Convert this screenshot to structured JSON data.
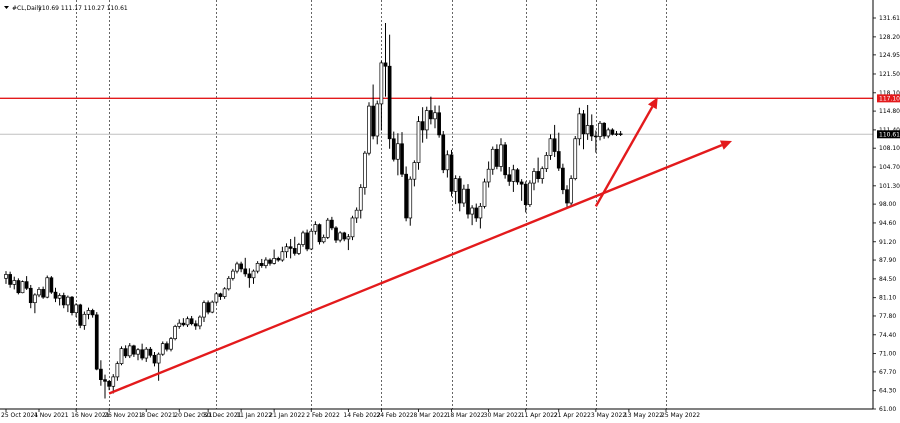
{
  "header": {
    "symbol": "#CL,Daily",
    "ohlc": "110.69 111.17 110.27 110.61"
  },
  "colors": {
    "background": "#ffffff",
    "grid": "#000000",
    "candle": "#000000",
    "bull_body": "#ffffff",
    "bear_body": "#000000",
    "resistance": "#e31a1c",
    "arrow": "#e31a1c",
    "current_price_line": "#c0c0c0",
    "price_tag_text": "#ffffff",
    "current_tag_bg": "#000000"
  },
  "chart_data": {
    "type": "candlestick",
    "title": "#CL,Daily",
    "y_ticks": [
      "131.61",
      "128.20",
      "124.95",
      "121.50",
      "118.10",
      "114.80",
      "111.40",
      "108.10",
      "104.70",
      "101.30",
      "98.00",
      "94.60",
      "91.20",
      "87.90",
      "84.50",
      "81.10",
      "77.80",
      "74.40",
      "71.00",
      "67.70",
      "64.30",
      "61.00"
    ],
    "ylim": [
      61.0,
      131.61
    ],
    "x_labels": [
      "25 Oct 2021",
      "4 Nov 2021",
      "16 Nov 2021",
      "26 Nov 2021",
      "8 Dec 2021",
      "20 Dec 2021",
      "30 Dec 2021",
      "11 Jan 2022",
      "21 Jan 2022",
      "2 Feb 2022",
      "14 Feb 2022",
      "24 Feb 2022",
      "8 Mar 2022",
      "18 Mar 2022",
      "30 Mar 2022",
      "11 Apr 2022",
      "21 Apr 2022",
      "3 May 2022",
      "13 May 2022",
      "25 May 2022"
    ],
    "x_label_day": [
      0,
      8,
      17,
      25,
      34,
      42,
      49,
      57,
      65,
      74,
      83,
      91,
      100,
      108,
      117,
      126,
      134,
      143,
      151,
      160
    ],
    "grid_day": [
      17,
      25,
      51,
      74,
      91,
      108,
      126,
      143,
      160
    ],
    "resistance": {
      "price": "117.10"
    },
    "current_price": {
      "price": "110.61"
    },
    "arrows": [
      {
        "from": [
          25,
          63.8
        ],
        "to": [
          176,
          109.4
        ]
      },
      {
        "from": [
          143,
          97.6
        ],
        "to": [
          158,
          117.3
        ]
      }
    ],
    "candles": [
      {
        "o": 84.6,
        "h": 85.9,
        "l": 83.6,
        "c": 85.3
      },
      {
        "o": 85.3,
        "h": 85.8,
        "l": 82.9,
        "c": 83.5
      },
      {
        "o": 83.5,
        "h": 84.9,
        "l": 82.6,
        "c": 84.2
      },
      {
        "o": 84.2,
        "h": 84.6,
        "l": 81.7,
        "c": 82.0
      },
      {
        "o": 82.0,
        "h": 84.2,
        "l": 81.9,
        "c": 84.0
      },
      {
        "o": 84.0,
        "h": 85.0,
        "l": 82.5,
        "c": 82.8
      },
      {
        "o": 82.8,
        "h": 83.4,
        "l": 79.2,
        "c": 80.2
      },
      {
        "o": 80.2,
        "h": 81.9,
        "l": 78.3,
        "c": 81.6
      },
      {
        "o": 81.6,
        "h": 83.0,
        "l": 81.2,
        "c": 82.6
      },
      {
        "o": 82.6,
        "h": 83.1,
        "l": 80.9,
        "c": 81.2
      },
      {
        "o": 81.2,
        "h": 85.1,
        "l": 81.0,
        "c": 84.7
      },
      {
        "o": 84.7,
        "h": 85.0,
        "l": 81.8,
        "c": 82.1
      },
      {
        "o": 82.1,
        "h": 82.9,
        "l": 80.3,
        "c": 81.0
      },
      {
        "o": 81.0,
        "h": 81.9,
        "l": 79.7,
        "c": 81.5
      },
      {
        "o": 81.5,
        "h": 82.0,
        "l": 79.2,
        "c": 79.8
      },
      {
        "o": 79.8,
        "h": 81.5,
        "l": 78.5,
        "c": 81.2
      },
      {
        "o": 81.2,
        "h": 81.4,
        "l": 77.9,
        "c": 78.4
      },
      {
        "o": 78.4,
        "h": 80.1,
        "l": 77.6,
        "c": 79.8
      },
      {
        "o": 79.8,
        "h": 80.0,
        "l": 75.6,
        "c": 76.1
      },
      {
        "o": 76.1,
        "h": 78.6,
        "l": 75.3,
        "c": 78.1
      },
      {
        "o": 78.1,
        "h": 79.3,
        "l": 77.2,
        "c": 78.8
      },
      {
        "o": 78.8,
        "h": 79.1,
        "l": 77.5,
        "c": 78.0
      },
      {
        "o": 78.0,
        "h": 78.5,
        "l": 68.0,
        "c": 68.2
      },
      {
        "o": 68.2,
        "h": 69.8,
        "l": 65.2,
        "c": 66.3
      },
      {
        "o": 66.3,
        "h": 67.2,
        "l": 62.9,
        "c": 66.0
      },
      {
        "o": 66.0,
        "h": 66.2,
        "l": 64.4,
        "c": 65.1
      },
      {
        "o": 65.1,
        "h": 67.3,
        "l": 63.8,
        "c": 66.8
      },
      {
        "o": 66.8,
        "h": 69.6,
        "l": 66.1,
        "c": 69.2
      },
      {
        "o": 69.2,
        "h": 72.3,
        "l": 68.9,
        "c": 71.9
      },
      {
        "o": 71.9,
        "h": 72.5,
        "l": 70.2,
        "c": 70.6
      },
      {
        "o": 70.6,
        "h": 72.9,
        "l": 70.2,
        "c": 72.4
      },
      {
        "o": 72.4,
        "h": 72.6,
        "l": 70.4,
        "c": 70.9
      },
      {
        "o": 70.9,
        "h": 72.0,
        "l": 69.8,
        "c": 71.7
      },
      {
        "o": 71.7,
        "h": 72.8,
        "l": 69.8,
        "c": 70.2
      },
      {
        "o": 70.2,
        "h": 72.2,
        "l": 69.5,
        "c": 71.8
      },
      {
        "o": 71.8,
        "h": 72.2,
        "l": 70.3,
        "c": 70.7
      },
      {
        "o": 70.7,
        "h": 71.3,
        "l": 68.7,
        "c": 69.3
      },
      {
        "o": 69.3,
        "h": 71.2,
        "l": 66.1,
        "c": 70.9
      },
      {
        "o": 70.9,
        "h": 73.2,
        "l": 70.6,
        "c": 72.8
      },
      {
        "o": 72.8,
        "h": 73.2,
        "l": 71.4,
        "c": 71.8
      },
      {
        "o": 71.8,
        "h": 74.0,
        "l": 71.4,
        "c": 73.7
      },
      {
        "o": 73.7,
        "h": 76.2,
        "l": 73.4,
        "c": 75.9
      },
      {
        "o": 75.9,
        "h": 77.2,
        "l": 75.5,
        "c": 76.5
      },
      {
        "o": 76.5,
        "h": 77.4,
        "l": 75.9,
        "c": 76.2
      },
      {
        "o": 76.2,
        "h": 77.7,
        "l": 75.8,
        "c": 77.3
      },
      {
        "o": 77.3,
        "h": 77.8,
        "l": 76.1,
        "c": 76.4
      },
      {
        "o": 76.4,
        "h": 77.0,
        "l": 75.3,
        "c": 76.0
      },
      {
        "o": 76.0,
        "h": 77.9,
        "l": 75.4,
        "c": 77.6
      },
      {
        "o": 77.6,
        "h": 80.6,
        "l": 76.7,
        "c": 80.2
      },
      {
        "o": 80.2,
        "h": 80.6,
        "l": 78.1,
        "c": 78.5
      },
      {
        "o": 78.5,
        "h": 80.6,
        "l": 78.3,
        "c": 80.3
      },
      {
        "o": 80.3,
        "h": 82.1,
        "l": 80.0,
        "c": 81.8
      },
      {
        "o": 81.8,
        "h": 82.0,
        "l": 80.7,
        "c": 81.3
      },
      {
        "o": 81.3,
        "h": 83.0,
        "l": 80.9,
        "c": 82.7
      },
      {
        "o": 82.7,
        "h": 85.0,
        "l": 82.4,
        "c": 84.6
      },
      {
        "o": 84.6,
        "h": 86.3,
        "l": 84.2,
        "c": 85.9
      },
      {
        "o": 85.9,
        "h": 87.6,
        "l": 85.5,
        "c": 87.2
      },
      {
        "o": 87.2,
        "h": 87.6,
        "l": 85.7,
        "c": 86.3
      },
      {
        "o": 86.3,
        "h": 88.3,
        "l": 84.9,
        "c": 85.4
      },
      {
        "o": 85.4,
        "h": 86.4,
        "l": 82.9,
        "c": 84.7
      },
      {
        "o": 84.7,
        "h": 86.2,
        "l": 83.6,
        "c": 85.9
      },
      {
        "o": 85.9,
        "h": 87.7,
        "l": 85.5,
        "c": 87.3
      },
      {
        "o": 87.3,
        "h": 88.1,
        "l": 86.5,
        "c": 86.9
      },
      {
        "o": 86.9,
        "h": 88.4,
        "l": 86.4,
        "c": 87.9
      },
      {
        "o": 87.9,
        "h": 88.2,
        "l": 86.9,
        "c": 87.3
      },
      {
        "o": 87.3,
        "h": 89.8,
        "l": 87.1,
        "c": 88.2
      },
      {
        "o": 88.2,
        "h": 88.5,
        "l": 87.6,
        "c": 87.9
      },
      {
        "o": 87.9,
        "h": 90.3,
        "l": 87.6,
        "c": 89.4
      },
      {
        "o": 89.4,
        "h": 90.9,
        "l": 88.3,
        "c": 90.3
      },
      {
        "o": 90.3,
        "h": 91.7,
        "l": 88.2,
        "c": 90.0
      },
      {
        "o": 90.0,
        "h": 92.1,
        "l": 88.7,
        "c": 89.1
      },
      {
        "o": 89.1,
        "h": 91.0,
        "l": 88.8,
        "c": 90.7
      },
      {
        "o": 90.7,
        "h": 93.2,
        "l": 90.3,
        "c": 92.8
      },
      {
        "o": 92.8,
        "h": 93.4,
        "l": 89.5,
        "c": 89.9
      },
      {
        "o": 89.9,
        "h": 93.5,
        "l": 89.7,
        "c": 93.1
      },
      {
        "o": 93.1,
        "h": 94.9,
        "l": 92.5,
        "c": 94.3
      },
      {
        "o": 94.3,
        "h": 94.5,
        "l": 90.7,
        "c": 91.2
      },
      {
        "o": 91.2,
        "h": 92.5,
        "l": 90.9,
        "c": 92.0
      },
      {
        "o": 92.0,
        "h": 95.5,
        "l": 91.7,
        "c": 95.1
      },
      {
        "o": 95.1,
        "h": 95.7,
        "l": 93.3,
        "c": 93.7
      },
      {
        "o": 93.7,
        "h": 94.0,
        "l": 91.0,
        "c": 91.5
      },
      {
        "o": 91.5,
        "h": 93.1,
        "l": 91.1,
        "c": 92.8
      },
      {
        "o": 92.8,
        "h": 93.0,
        "l": 91.3,
        "c": 91.7
      },
      {
        "o": 91.7,
        "h": 92.6,
        "l": 89.7,
        "c": 92.1
      },
      {
        "o": 92.1,
        "h": 95.9,
        "l": 91.5,
        "c": 95.5
      },
      {
        "o": 95.5,
        "h": 97.4,
        "l": 94.6,
        "c": 96.9
      },
      {
        "o": 96.9,
        "h": 101.6,
        "l": 95.4,
        "c": 101.0
      },
      {
        "o": 101.0,
        "h": 107.6,
        "l": 99.7,
        "c": 107.2
      },
      {
        "o": 107.2,
        "h": 116.4,
        "l": 106.8,
        "c": 115.7
      },
      {
        "o": 115.7,
        "h": 119.6,
        "l": 109.7,
        "c": 110.3
      },
      {
        "o": 110.3,
        "h": 116.7,
        "l": 108.8,
        "c": 116.1
      },
      {
        "o": 116.1,
        "h": 123.9,
        "l": 111.3,
        "c": 123.5
      },
      {
        "o": 123.5,
        "h": 130.7,
        "l": 117.4,
        "c": 122.9
      },
      {
        "o": 122.9,
        "h": 128.6,
        "l": 108.0,
        "c": 109.8
      },
      {
        "o": 109.8,
        "h": 111.1,
        "l": 105.7,
        "c": 106.1
      },
      {
        "o": 106.1,
        "h": 110.8,
        "l": 103.2,
        "c": 108.9
      },
      {
        "o": 108.9,
        "h": 111.0,
        "l": 102.9,
        "c": 103.4
      },
      {
        "o": 103.4,
        "h": 104.8,
        "l": 94.9,
        "c": 95.5
      },
      {
        "o": 95.5,
        "h": 103.0,
        "l": 94.1,
        "c": 102.5
      },
      {
        "o": 102.5,
        "h": 105.9,
        "l": 101.2,
        "c": 105.5
      },
      {
        "o": 105.5,
        "h": 113.9,
        "l": 104.2,
        "c": 112.9
      },
      {
        "o": 112.9,
        "h": 115.5,
        "l": 109.1,
        "c": 111.4
      },
      {
        "o": 111.4,
        "h": 115.6,
        "l": 109.8,
        "c": 114.9
      },
      {
        "o": 114.9,
        "h": 117.4,
        "l": 112.4,
        "c": 113.4
      },
      {
        "o": 113.4,
        "h": 115.8,
        "l": 111.7,
        "c": 114.5
      },
      {
        "o": 114.5,
        "h": 115.8,
        "l": 110.0,
        "c": 110.5
      },
      {
        "o": 110.5,
        "h": 111.2,
        "l": 103.6,
        "c": 104.2
      },
      {
        "o": 104.2,
        "h": 107.7,
        "l": 102.8,
        "c": 106.9
      },
      {
        "o": 106.9,
        "h": 107.8,
        "l": 99.4,
        "c": 100.3
      },
      {
        "o": 100.3,
        "h": 103.2,
        "l": 98.0,
        "c": 102.6
      },
      {
        "o": 102.6,
        "h": 103.1,
        "l": 96.7,
        "c": 98.2
      },
      {
        "o": 98.2,
        "h": 101.5,
        "l": 97.5,
        "c": 100.7
      },
      {
        "o": 100.7,
        "h": 101.6,
        "l": 95.4,
        "c": 96.2
      },
      {
        "o": 96.2,
        "h": 97.8,
        "l": 94.2,
        "c": 97.3
      },
      {
        "o": 97.3,
        "h": 98.1,
        "l": 94.8,
        "c": 95.5
      },
      {
        "o": 95.5,
        "h": 98.2,
        "l": 93.6,
        "c": 97.6
      },
      {
        "o": 97.6,
        "h": 102.6,
        "l": 97.2,
        "c": 102.0
      },
      {
        "o": 102.0,
        "h": 105.7,
        "l": 101.0,
        "c": 104.3
      },
      {
        "o": 104.3,
        "h": 108.4,
        "l": 103.3,
        "c": 107.9
      },
      {
        "o": 107.9,
        "h": 108.8,
        "l": 104.3,
        "c": 104.8
      },
      {
        "o": 104.8,
        "h": 109.9,
        "l": 103.9,
        "c": 108.7
      },
      {
        "o": 108.7,
        "h": 109.2,
        "l": 102.6,
        "c": 103.3
      },
      {
        "o": 103.3,
        "h": 104.7,
        "l": 101.3,
        "c": 102.1
      },
      {
        "o": 102.1,
        "h": 105.1,
        "l": 100.2,
        "c": 104.2
      },
      {
        "o": 104.2,
        "h": 104.5,
        "l": 101.5,
        "c": 102.0
      },
      {
        "o": 102.0,
        "h": 102.5,
        "l": 98.6,
        "c": 101.6
      },
      {
        "o": 101.6,
        "h": 102.1,
        "l": 96.5,
        "c": 97.9
      },
      {
        "o": 97.9,
        "h": 102.3,
        "l": 97.5,
        "c": 101.8
      },
      {
        "o": 101.8,
        "h": 104.5,
        "l": 100.5,
        "c": 103.9
      },
      {
        "o": 103.9,
        "h": 106.4,
        "l": 101.9,
        "c": 102.6
      },
      {
        "o": 102.6,
        "h": 104.8,
        "l": 101.7,
        "c": 104.4
      },
      {
        "o": 104.4,
        "h": 107.4,
        "l": 103.8,
        "c": 106.8
      },
      {
        "o": 106.8,
        "h": 110.6,
        "l": 106.0,
        "c": 109.8
      },
      {
        "o": 109.8,
        "h": 112.3,
        "l": 106.5,
        "c": 107.5
      },
      {
        "o": 107.5,
        "h": 110.9,
        "l": 104.0,
        "c": 104.5
      },
      {
        "o": 104.5,
        "h": 105.3,
        "l": 99.8,
        "c": 100.6
      },
      {
        "o": 100.6,
        "h": 101.4,
        "l": 97.5,
        "c": 98.2
      },
      {
        "o": 98.2,
        "h": 103.2,
        "l": 97.6,
        "c": 102.6
      },
      {
        "o": 102.6,
        "h": 110.3,
        "l": 102.3,
        "c": 109.8
      },
      {
        "o": 109.8,
        "h": 115.4,
        "l": 108.6,
        "c": 114.3
      },
      {
        "o": 114.3,
        "h": 115.0,
        "l": 107.9,
        "c": 110.7
      },
      {
        "o": 110.7,
        "h": 115.9,
        "l": 109.6,
        "c": 112.2
      },
      {
        "o": 112.2,
        "h": 114.2,
        "l": 109.4,
        "c": 110.3
      },
      {
        "o": 110.3,
        "h": 111.3,
        "l": 107.3,
        "c": 110.2
      },
      {
        "o": 110.2,
        "h": 113.0,
        "l": 109.5,
        "c": 112.6
      },
      {
        "o": 112.6,
        "h": 112.8,
        "l": 109.8,
        "c": 110.3
      },
      {
        "o": 110.3,
        "h": 111.8,
        "l": 109.9,
        "c": 111.4
      },
      {
        "o": 111.4,
        "h": 111.7,
        "l": 110.4,
        "c": 110.6
      },
      {
        "o": 110.6,
        "h": 111.2,
        "l": 110.3,
        "c": 110.7
      },
      {
        "o": 110.7,
        "h": 111.2,
        "l": 110.3,
        "c": 110.6
      }
    ]
  }
}
